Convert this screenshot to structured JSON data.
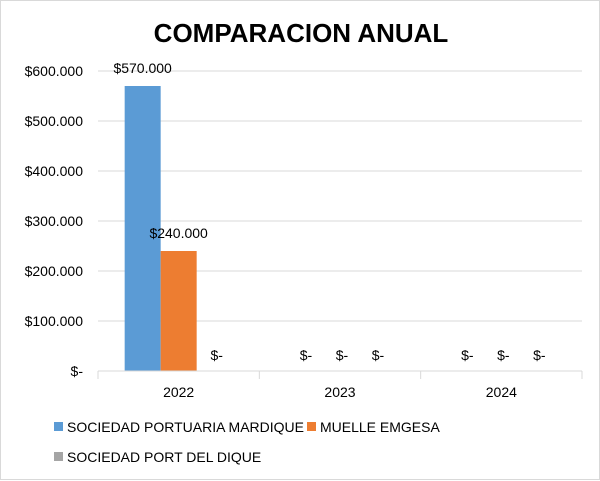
{
  "chart_data": {
    "type": "bar",
    "title": "COMPARACION ANUAL",
    "categories": [
      "2022",
      "2023",
      "2024"
    ],
    "series": [
      {
        "name": "SOCIEDAD PORTUARIA MARDIQUE",
        "color": "#5b9bd5",
        "values": [
          570000,
          0,
          0
        ],
        "labels": [
          "$570.000",
          "$-",
          "$-"
        ]
      },
      {
        "name": "MUELLE EMGESA",
        "color": "#ed7d31",
        "values": [
          240000,
          0,
          0
        ],
        "labels": [
          "$240.000",
          "$-",
          "$-"
        ]
      },
      {
        "name": "SOCIEDAD PORT DEL DIQUE",
        "color": "#a5a5a5",
        "values": [
          0,
          0,
          0
        ],
        "labels": [
          "$-",
          "$-",
          "$-"
        ]
      }
    ],
    "ylim": [
      0,
      600000
    ],
    "yticks": [
      0,
      100000,
      200000,
      300000,
      400000,
      500000,
      600000
    ],
    "ytick_labels": [
      "$-",
      "$100.000",
      "$200.000",
      "$300.000",
      "$400.000",
      "$500.000",
      "$600.000"
    ],
    "grid": true,
    "legend_position": "bottom",
    "gridline_color": "#d9d9d9"
  }
}
